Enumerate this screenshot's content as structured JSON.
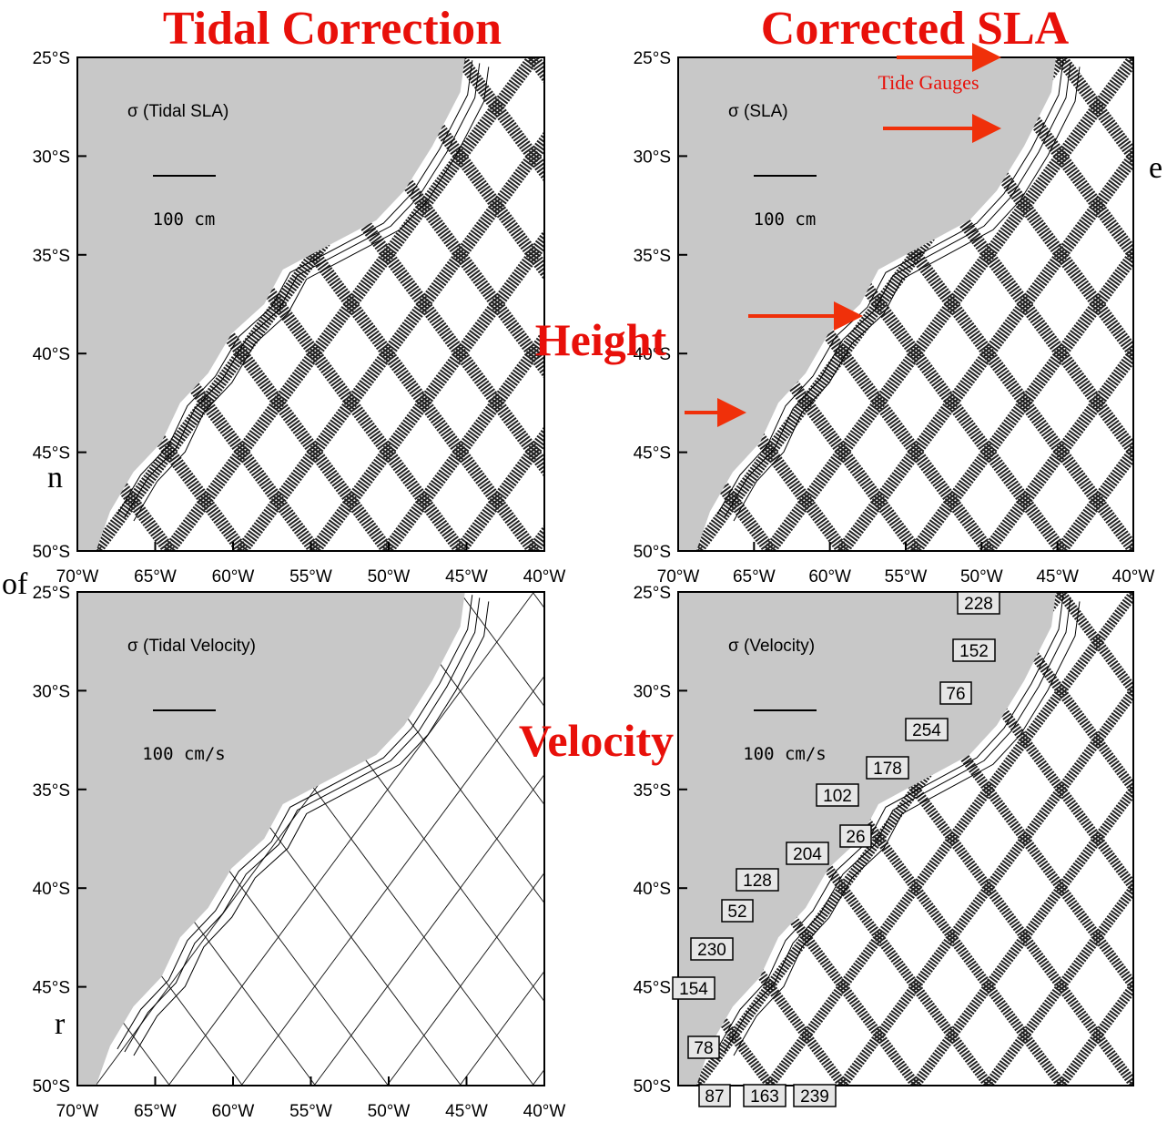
{
  "title_left": "Tidal Correction",
  "title_right": "Corrected SLA",
  "side_labels": {
    "height": "Height",
    "velocity": "Velocity"
  },
  "tide_gauges_label": "Tide Gauges",
  "fragments": [
    "e",
    "n",
    "of",
    "r"
  ],
  "panels": [
    {
      "label": "σ (Tidal SLA)",
      "scale_label": "100 cm",
      "lat_labels": [
        "25°S",
        "30°S",
        "35°S",
        "40°S",
        "45°S",
        "50°S"
      ],
      "lon_labels": [
        "70°W",
        "65°W",
        "60°W",
        "55°W",
        "50°W",
        "45°W",
        "40°W"
      ]
    },
    {
      "label": "σ (SLA)",
      "scale_label": "100 cm",
      "lat_labels": [
        "25°S",
        "30°S",
        "35°S",
        "40°S",
        "45°S",
        "50°S"
      ],
      "lon_labels": [
        "70°W",
        "65°W",
        "60°W",
        "55°W",
        "50°W",
        "45°W",
        "40°W"
      ]
    },
    {
      "label": "σ (Tidal Velocity)",
      "scale_label": "100 cm/s",
      "lat_labels": [
        "25°S",
        "30°S",
        "35°S",
        "40°S",
        "45°S",
        "50°S"
      ],
      "lon_labels": [
        "70°W",
        "65°W",
        "60°W",
        "55°W",
        "50°W",
        "45°W",
        "40°W"
      ]
    },
    {
      "label": "σ (Velocity)",
      "scale_label": "100 cm/s",
      "lat_labels": [
        "25°S",
        "30°S",
        "35°S",
        "40°S",
        "45°S",
        "50°S"
      ]
    }
  ],
  "track_numbers": [
    "228",
    "152",
    "76",
    "254",
    "178",
    "102",
    "26",
    "204",
    "128",
    "52",
    "230",
    "154",
    "78",
    "87",
    "163",
    "239"
  ]
}
